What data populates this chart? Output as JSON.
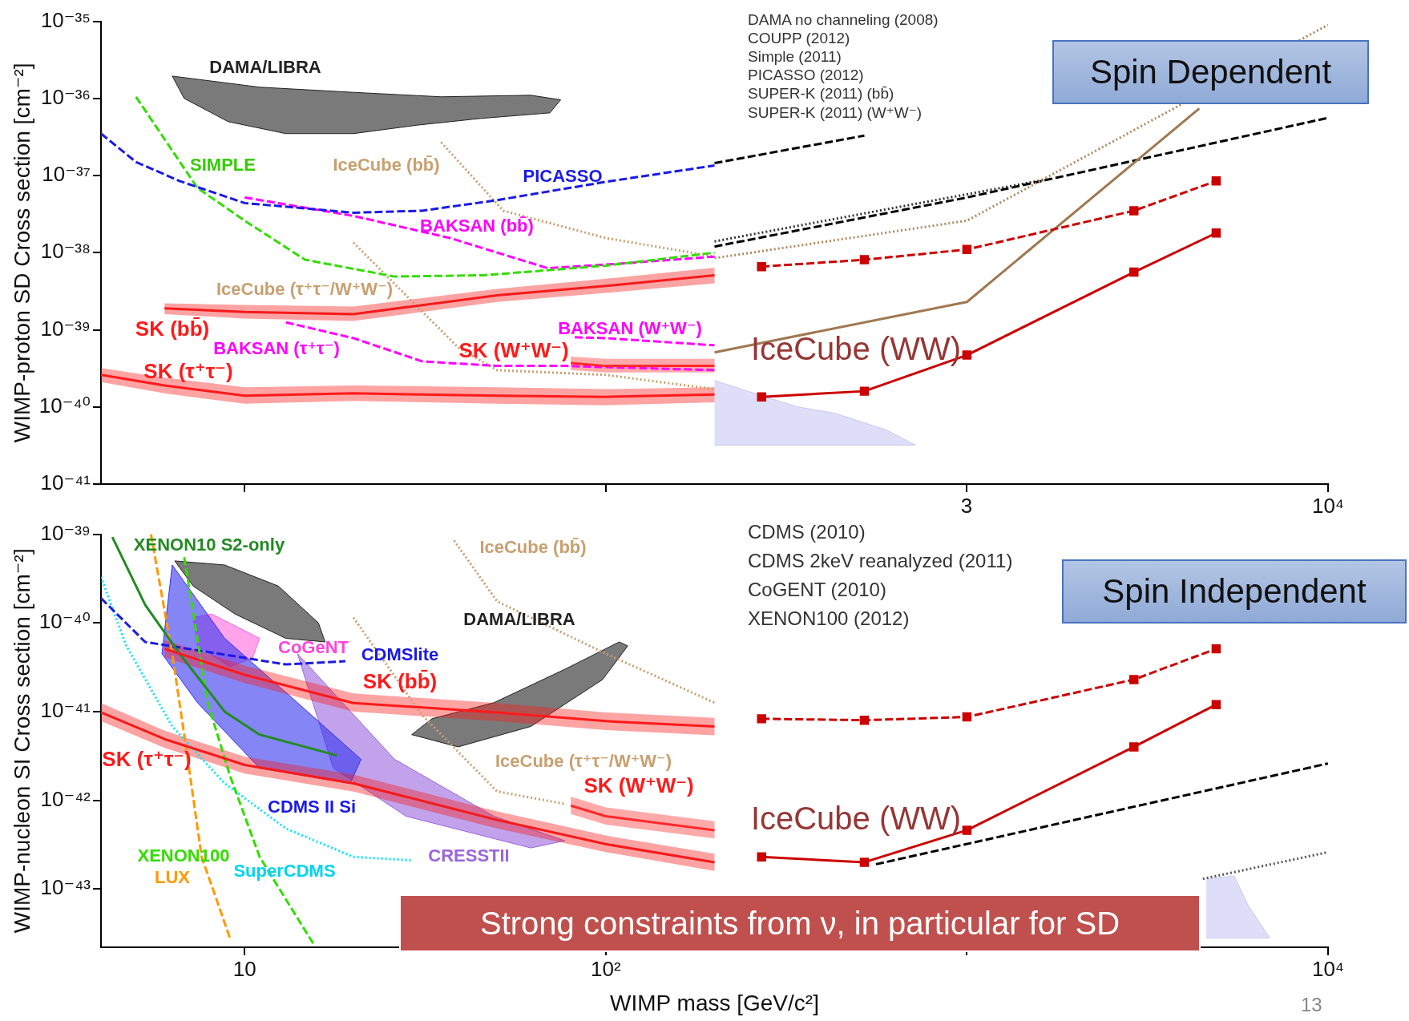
{
  "chart_data": [
    {
      "type": "line",
      "ylabel": "WIMP-proton SD Cross section [cm⁻²]",
      "log": "xy",
      "grid": false,
      "legend": false,
      "tick_labels": "y",
      "xlim": [
        4,
        10000
      ],
      "xticks": [
        {
          "value": 10,
          "label": null
        },
        {
          "value": 100,
          "label": null
        },
        {
          "value": 1000,
          "label": null
        },
        {
          "value": 10000,
          "label": null
        }
      ],
      "ylim": [
        1e-41,
        1e-35
      ],
      "yticks": [
        {
          "value": 1e-41,
          "label": "10⁻⁴¹"
        },
        {
          "value": 1e-40,
          "label": "10⁻⁴⁰"
        },
        {
          "value": 1e-39,
          "label": "10⁻³⁹"
        },
        {
          "value": 1e-38,
          "label": "10⁻³⁸"
        },
        {
          "value": 1e-37,
          "label": "10⁻³⁷"
        },
        {
          "value": 1e-36,
          "label": "10⁻³⁶"
        },
        {
          "value": 1e-35,
          "label": "10⁻³⁵"
        }
      ],
      "series": [
        {
          "type": "line",
          "color": "#ff1a1a",
          "x": [
            4,
            6,
            10,
            20,
            50,
            100,
            200
          ],
          "values": [
            2.6e-40,
            1.9e-40,
            1.4e-40,
            1.5e-40,
            1.4e-40,
            1.35e-40,
            1.45e-40
          ],
          "lower": [
            2.1e-40,
            1.5e-40,
            1.1e-40,
            1.2e-40,
            1.1e-40,
            1.05e-40,
            1.15e-40
          ],
          "upper": [
            3.2e-40,
            2.4e-40,
            1.8e-40,
            1.9e-40,
            1.8e-40,
            1.7e-40,
            1.8e-40
          ]
        },
        {
          "type": "line",
          "color": "#f51a1a",
          "x": [
            6,
            10,
            20,
            50,
            100,
            200
          ],
          "values": [
            1.9e-39,
            1.7e-39,
            1.6e-39,
            2.8e-39,
            3.7e-39,
            5.1e-39
          ],
          "lower": [
            1.6e-39,
            1.4e-39,
            1.3e-39,
            2.3e-39,
            3e-39,
            4e-39
          ],
          "upper": [
            2.2e-39,
            2.1e-39,
            2e-39,
            3.4e-39,
            4.6e-39,
            6.4e-39
          ]
        },
        {
          "type": "line",
          "color": "#ff2a2a",
          "x": [
            80,
            100,
            200
          ],
          "values": [
            3.7e-40,
            3.4e-40,
            3.4e-40
          ],
          "lower": [
            3e-40,
            2.8e-40,
            2.8e-40
          ],
          "upper": [
            4.5e-40,
            4.2e-40,
            4.2e-40
          ]
        },
        {
          "type": "line",
          "color": "#1a1ae6",
          "line_style": "dashed",
          "x": [
            4,
            5,
            6.6,
            10,
            20,
            31,
            50,
            100,
            200
          ],
          "values": [
            3.5e-37,
            1.5e-37,
            8.5e-38,
            4.4e-38,
            3.3e-38,
            3.5e-38,
            4.8e-38,
            8.3e-38,
            1.35e-37
          ]
        },
        {
          "type": "line",
          "color": "#33dd00",
          "line_style": "dashed",
          "x": [
            5,
            7.4,
            10,
            14.7,
            26,
            46,
            100,
            200
          ],
          "values": [
            1.05e-36,
            6.9e-38,
            2.6e-38,
            8.1e-39,
            4.9e-39,
            5.1e-39,
            6.8e-39,
            1e-38
          ]
        },
        {
          "type": "line",
          "color": "#ff00ff",
          "line_style": "dashed",
          "x": [
            10,
            20,
            37,
            69,
            109,
            200
          ],
          "values": [
            5.2e-38,
            3e-38,
            1.55e-38,
            6.3e-39,
            7.2e-39,
            8.9e-39
          ]
        },
        {
          "type": "line",
          "color": "#ff00ff",
          "line_style": "dashed",
          "x": [
            13,
            20,
            31,
            50,
            77,
            200
          ],
          "values": [
            1.25e-39,
            7.8e-40,
            3.9e-40,
            3.4e-40,
            3.4e-40,
            3e-40
          ]
        },
        {
          "type": "line",
          "color": "#ff00ff",
          "line_style": "dashed",
          "x": [
            82,
            100,
            200
          ],
          "values": [
            8e-40,
            7.8e-40,
            6.3e-40
          ]
        },
        {
          "type": "line",
          "color": "#c8a070",
          "line_style": "dotted",
          "x": [
            35,
            52,
            100,
            200
          ],
          "values": [
            2.7e-37,
            3.5e-38,
            1.55e-38,
            8.9e-39
          ]
        },
        {
          "type": "line",
          "color": "#c8a070",
          "line_style": "dotted",
          "x": [
            20,
            39,
            50,
            100,
            200
          ],
          "values": [
            1.35e-38,
            5.9e-40,
            3e-40,
            2.6e-40,
            1.7e-40
          ]
        },
        {
          "type": "area",
          "color": "#222222",
          "x": [
            6.3,
            11,
            20,
            35,
            62,
            75,
            70,
            45,
            30,
            20,
            13,
            9,
            6.8,
            6.3
          ],
          "values": [
            1.95e-36,
            1.4e-36,
            1.2e-36,
            1.05e-36,
            1.1e-36,
            9.6e-37,
            6.5e-37,
            5.5e-37,
            4.5e-37,
            3.5e-37,
            3.5e-37,
            5e-37,
            1e-36,
            1.95e-36
          ]
        },
        {
          "type": "area",
          "color": "#c8c8f4",
          "x": [
            200,
            270,
            340,
            430,
            600,
            720,
            200
          ],
          "values": [
            2.2e-40,
            1.4e-40,
            1e-40,
            8.3e-41,
            5e-41,
            3.2e-41,
            3.2e-41
          ]
        },
        {
          "type": "line",
          "color": "#cc0000",
          "line_style": "dashed",
          "marker": "square",
          "x": [
            270,
            520,
            1000,
            2900,
            4900
          ],
          "values": [
            6.6e-39,
            8.1e-39,
            1.1e-38,
            3.5e-38,
            8.5e-38
          ]
        },
        {
          "type": "line",
          "color": "#cc0000",
          "marker": "square",
          "x": [
            270,
            520,
            1000,
            2900,
            4900
          ],
          "values": [
            1.35e-40,
            1.6e-40,
            4.7e-40,
            5.6e-39,
            1.8e-38
          ]
        },
        {
          "type": "line",
          "color": "#a07850",
          "x": [
            200,
            1000,
            4400
          ],
          "values": [
            5.1e-40,
            2.3e-39,
            7.4e-37
          ]
        },
        {
          "type": "line",
          "color": "#b08860",
          "line_style": "dotted",
          "x": [
            200,
            1000,
            10000
          ],
          "values": [
            8.5e-39,
            2.6e-38,
            9e-36
          ]
        },
        {
          "type": "line",
          "color": "#000000",
          "line_style": "dashed",
          "x": [
            200,
            1000,
            10000
          ],
          "values": [
            1.2e-38,
            5.2e-38,
            5.6e-37
          ]
        },
        {
          "type": "line",
          "color": "#333333",
          "line_style": "dotted",
          "x": [
            200,
            1700
          ],
          "values": [
            1.4e-38,
            9.1e-38
          ]
        },
        {
          "type": "line",
          "color": "#000000",
          "line_style": "dashed",
          "x": [
            200,
            520
          ],
          "values": [
            1.45e-37,
            3.3e-37
          ]
        }
      ],
      "annotations": [
        "DAMA no channeling (2008)",
        "COUPP (2012)",
        "Simple (2011)",
        "PICASSO (2012)",
        "SUPER-K (2011) (bb̄)",
        "SUPER-K (2011) (W⁺W⁻)",
        "Spin Dependent",
        "DAMA/LIBRA",
        "SIMPLE",
        "IceCube (bb̄)",
        "PICASSO",
        "BAKSAN (bb̄)",
        "IceCube (τ⁺τ⁻/W⁺W⁻)",
        "SK (bb̄)",
        "BAKSAN (W⁺W⁻)",
        "BAKSAN (τ⁺τ⁻)",
        "SK (W⁺W⁻)",
        "SK (τ⁺τ⁻)",
        "IceCube (WW)",
        "3",
        "10⁴"
      ]
    },
    {
      "type": "line",
      "ylabel": "WIMP-nucleon SI Cross section [cm⁻²]",
      "xlabel": "WIMP mass [GeV/c²]",
      "log": "xy",
      "grid": false,
      "legend": false,
      "xlim": [
        4,
        10000
      ],
      "xticks": [
        {
          "value": 10,
          "label": "10"
        },
        {
          "value": 100,
          "label": "10²"
        },
        {
          "value": 1000,
          "label": null
        },
        {
          "value": 10000,
          "label": "10⁴"
        }
      ],
      "ylim": [
        2.2e-44,
        1e-39
      ],
      "yticks": [
        {
          "value": 1e-43,
          "label": "10⁻⁴³"
        },
        {
          "value": 1e-42,
          "label": "10⁻⁴²"
        },
        {
          "value": 1e-41,
          "label": "10⁻⁴¹"
        },
        {
          "value": 1e-40,
          "label": "10⁻⁴⁰"
        },
        {
          "value": 1e-39,
          "label": "10⁻³⁹"
        }
      ],
      "series": [
        {
          "type": "area",
          "color": "#222222",
          "x": [
            6.4,
            8.8,
            12.4,
            16,
            16.7,
            13,
            9.4,
            7.2,
            6.4
          ],
          "values": [
            5e-40,
            4.5e-40,
            2.6e-40,
            1e-40,
            6.1e-41,
            6.7e-41,
            1.26e-40,
            2.6e-40,
            5e-40
          ]
        },
        {
          "type": "area",
          "color": "#222222",
          "x": [
            29,
            39,
            62,
            98,
            115,
            109,
            77,
            49,
            33,
            29
          ],
          "values": [
            5.5e-42,
            4e-42,
            6.8e-42,
            2.3e-41,
            5.5e-41,
            6.1e-41,
            3e-41,
            1.26e-41,
            8.3e-42,
            5.5e-42
          ]
        },
        {
          "type": "area",
          "color": "#3333ee",
          "x": [
            6.3,
            8.8,
            14,
            21,
            19.6,
            11,
            7.4,
            5.9,
            6.3
          ],
          "values": [
            4.5e-40,
            6.7e-41,
            1.26e-41,
            2.9e-42,
            1.55e-42,
            2.3e-42,
            1.26e-41,
            4.5e-41,
            4.5e-40
          ]
        },
        {
          "type": "area",
          "color": "#9966dd",
          "x": [
            14,
            26,
            49,
            77,
            62,
            28,
            17.6,
            14
          ],
          "values": [
            4.5e-41,
            2.9e-42,
            6.6e-43,
            3.5e-43,
            2.9e-43,
            6.6e-43,
            2.3e-42,
            4.5e-41
          ]
        },
        {
          "type": "area",
          "color": "#ff66dd",
          "x": [
            7.2,
            8.1,
            11,
            10.5,
            9.1,
            7.4,
            7.2
          ],
          "values": [
            1.15e-40,
            1.26e-40,
            6.7e-41,
            4e-41,
            3.2e-41,
            5.5e-41,
            1.15e-40
          ]
        },
        {
          "type": "area",
          "color": "#c8c8f4",
          "x": [
            4600,
            5500,
            6000,
            6900,
            6900,
            4600
          ],
          "values": [
            1.3e-43,
            1.4e-43,
            6.6e-44,
            2.8e-44,
            2.8e-44,
            2.8e-44
          ]
        },
        {
          "type": "line",
          "color": "#ff1a1a",
          "x": [
            6,
            10,
            20,
            50,
            100,
            200
          ],
          "values": [
            5.1e-41,
            2.6e-41,
            1.25e-41,
            9.8e-42,
            7.8e-42,
            6.8e-42
          ],
          "lower": [
            4.1e-41,
            2.1e-41,
            1e-41,
            7.8e-42,
            6.2e-42,
            5.4e-42
          ],
          "upper": [
            6.4e-41,
            3.3e-41,
            1.6e-41,
            1.25e-41,
            9.8e-42,
            8.5e-42
          ]
        },
        {
          "type": "line",
          "color": "#f51a1a",
          "x": [
            4,
            6,
            10,
            20,
            50,
            100,
            200
          ],
          "values": [
            9.8e-42,
            4.9e-42,
            2.5e-42,
            1.55e-42,
            6e-43,
            3.2e-43,
            2e-43
          ],
          "lower": [
            7.8e-42,
            3.9e-42,
            2e-42,
            1.25e-42,
            4.8e-43,
            2.6e-43,
            1.6e-43
          ],
          "upper": [
            1.25e-41,
            6.1e-42,
            3.1e-42,
            1.95e-42,
            7.5e-43,
            4e-43,
            2.5e-43
          ]
        },
        {
          "type": "line",
          "color": "#ff2a2a",
          "x": [
            80,
            100,
            200
          ],
          "values": [
            8.7e-43,
            6.6e-43,
            4.6e-43
          ],
          "lower": [
            7e-43,
            5.3e-43,
            3.7e-43
          ],
          "upper": [
            1.1e-42,
            8.3e-43,
            5.8e-43
          ]
        },
        {
          "type": "line",
          "color": "#228b22",
          "x": [
            4.3,
            5.3,
            6.6,
            8.8,
            11,
            18
          ],
          "values": [
            9.3e-40,
            1.6e-40,
            4.5e-41,
            1e-41,
            5.5e-42,
            3.2e-42
          ]
        },
        {
          "type": "line",
          "color": "#ff9900",
          "line_style": "dashed",
          "x": [
            5.5,
            6.3,
            6.8,
            7.6,
            9.1
          ],
          "values": [
            1e-39,
            4.5e-41,
            5.5e-42,
            2.3e-43,
            2.8e-44
          ]
        },
        {
          "type": "line",
          "color": "#33dd00",
          "line_style": "dashed",
          "x": [
            6.8,
            7.9,
            9.1,
            11,
            15.6
          ],
          "values": [
            5.5e-40,
            1.26e-41,
            1.9e-42,
            2.3e-43,
            2.3e-44
          ]
        },
        {
          "type": "line",
          "color": "#1a1ae6",
          "line_style": "dashed",
          "x": [
            4,
            5.3,
            13,
            19
          ],
          "values": [
            1.9e-40,
            6.1e-41,
            3.4e-41,
            3.7e-41
          ]
        },
        {
          "type": "line",
          "color": "#00e5ff",
          "line_style": "dotted",
          "x": [
            4,
            4.7,
            6.3,
            8.8,
            13,
            20,
            29
          ],
          "values": [
            3.3e-40,
            5.5e-41,
            6.8e-42,
            1.55e-42,
            4.8e-43,
            2.3e-43,
            2.1e-43
          ]
        },
        {
          "type": "line",
          "color": "#c8a070",
          "line_style": "dotted",
          "x": [
            38,
            50,
            100,
            200
          ],
          "values": [
            8.5e-40,
            1.75e-40,
            4.5e-41,
            1.26e-41
          ]
        },
        {
          "type": "line",
          "color": "#c8a070",
          "line_style": "dotted",
          "x": [
            20,
            31,
            50,
            77
          ],
          "values": [
            1.15e-40,
            9.1e-42,
            1.26e-42,
            9.1e-43
          ]
        },
        {
          "type": "line",
          "color": "#cc0000",
          "line_style": "dashed",
          "marker": "square",
          "x": [
            270,
            520,
            1000,
            2900,
            4900
          ],
          "values": [
            8.3e-42,
            8e-42,
            8.7e-42,
            2.3e-41,
            5.1e-41
          ]
        },
        {
          "type": "line",
          "color": "#cc0000",
          "marker": "square",
          "x": [
            270,
            520,
            1000,
            2900,
            4900
          ],
          "values": [
            2.3e-43,
            2e-43,
            4.6e-43,
            4e-42,
            1.2e-41
          ]
        },
        {
          "type": "line",
          "color": "#000000",
          "line_style": "dashed",
          "x": [
            560,
            10000
          ],
          "values": [
            1.9e-43,
            2.6e-42
          ]
        },
        {
          "type": "line",
          "color": "#555555",
          "line_style": "dotted",
          "x": [
            4500,
            10000
          ],
          "values": [
            1.3e-43,
            2.6e-43
          ]
        }
      ],
      "annotations": [
        "CDMS (2010)",
        "CDMS 2keV reanalyzed (2011)",
        "CoGENT (2010)",
        "XENON100 (2012)",
        "Spin Independent",
        "Strong constraints from ν, in particular for SD",
        "13",
        "XENON10 S2-only",
        "IceCube (bb̄)",
        "DAMA/LIBRA",
        "CoGeNT",
        "CDMSlite",
        "SK (bb̄)",
        "SK (τ⁺τ⁻)",
        "IceCube (τ⁺τ⁻/W⁺W⁻)",
        "SK (W⁺W⁻)",
        "CDMS II Si",
        "XENON100",
        "LUX",
        "SuperCDMS",
        "CRESSTII",
        "IceCube (WW)"
      ]
    }
  ]
}
